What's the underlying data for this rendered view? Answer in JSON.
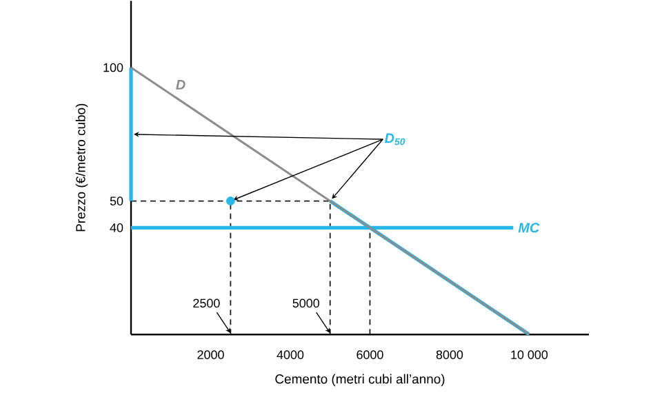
{
  "chart_data": {
    "type": "line",
    "xlabel": "Cemento (metri cubi all’anno)",
    "ylabel": "Prezzo (€/metro cubo)",
    "xlim": [
      0,
      11500
    ],
    "ylim": [
      0,
      125
    ],
    "xticks": [
      2000,
      4000,
      6000,
      8000,
      {
        "value": 10000,
        "label": "10 000"
      }
    ],
    "yticks": [
      40,
      50,
      100
    ],
    "grid": false,
    "series": [
      {
        "color": "#1a1a1a",
        "line_style": "dashed",
        "x": [
          0,
          5000
        ],
        "values": [
          50,
          50
        ]
      },
      {
        "color": "#1a1a1a",
        "line_style": "dashed",
        "x": [
          2500,
          2500
        ],
        "values": [
          0,
          50
        ]
      },
      {
        "color": "#1a1a1a",
        "line_style": "dashed",
        "x": [
          5000,
          5000
        ],
        "values": [
          0,
          50
        ]
      },
      {
        "color": "#1a1a1a",
        "line_style": "dashed",
        "x": [
          6000,
          6000
        ],
        "values": [
          0,
          40
        ]
      },
      {
        "name": "MC",
        "color": "#29b6e8",
        "line_style": "solid",
        "x": [
          0,
          9600
        ],
        "values": [
          40,
          40
        ]
      },
      {
        "name": "D$_{50}$",
        "color": "#29b6e8",
        "line_style": "solid",
        "x": [
          0,
          0,
          2500,
          5000,
          10000
        ],
        "values": [
          100,
          50,
          null,
          50,
          0
        ]
      },
      {
        "name": "D",
        "color": "#8c8c8c",
        "line_style": "solid",
        "x": [
          0,
          10000
        ],
        "values": [
          100,
          0
        ]
      },
      {
        "type": "scatter",
        "color": "#29b6e8",
        "marker": "circle",
        "x": [
          2500
        ],
        "values": [
          50
        ]
      }
    ],
    "annotations": [
      {
        "text": "2500",
        "x": 2500,
        "y": 0
      },
      {
        "text": "5000",
        "x": 5000,
        "y": 0
      }
    ]
  }
}
